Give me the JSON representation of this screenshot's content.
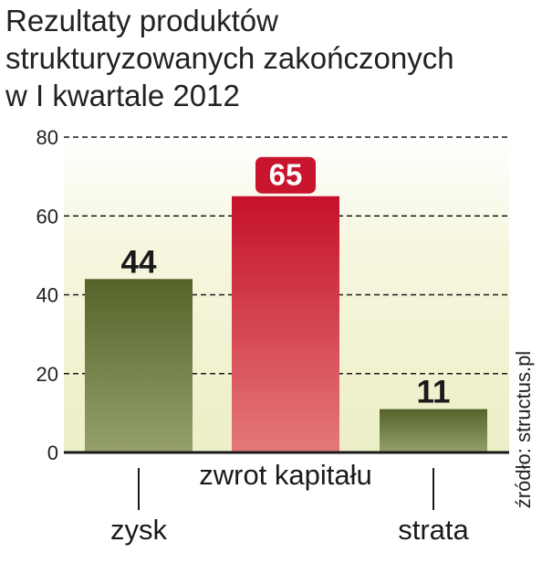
{
  "chart_data": {
    "type": "bar",
    "title": "Rezultaty produktów strukturyzowanych zakończonych w I kwartale 2012",
    "categories": [
      "zysk",
      "zwrot kapitału",
      "strata"
    ],
    "values": [
      44,
      65,
      11
    ],
    "value_labels": [
      "44",
      "65",
      "11"
    ],
    "ylim": [
      0,
      80
    ],
    "yticks": [
      0,
      20,
      40,
      60,
      80
    ],
    "ytick_labels": [
      "0",
      "20",
      "40",
      "60",
      "80"
    ],
    "grid": true,
    "bar_colors": [
      "#5d6b2f",
      "#c9142d",
      "#5d6b2f"
    ],
    "highlight_label_color": "#c9142d",
    "source": "źródło: structus.pl"
  }
}
